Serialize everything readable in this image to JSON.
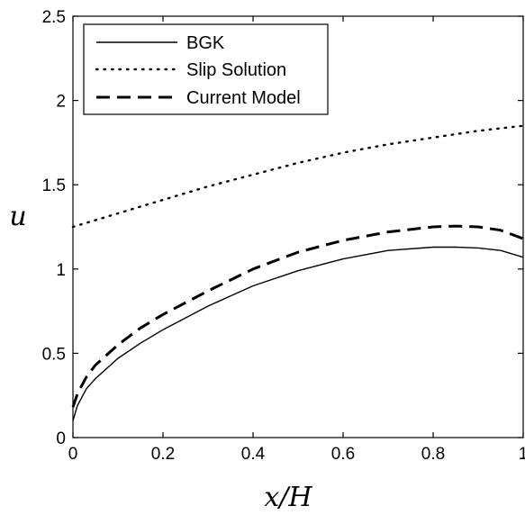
{
  "chart_data": {
    "type": "line",
    "xlabel": "x/H",
    "ylabel": "u",
    "xlim": [
      0,
      1
    ],
    "ylim": [
      0,
      2.5
    ],
    "x_ticks": [
      0,
      0.2,
      0.4,
      0.6,
      0.8,
      1
    ],
    "x_tick_labels": [
      "0",
      "0.2",
      "0.4",
      "0.6",
      "0.8",
      "1"
    ],
    "y_ticks": [
      0,
      0.5,
      1,
      1.5,
      2,
      2.5
    ],
    "y_tick_labels": [
      "0",
      "0.5",
      "1",
      "1.5",
      "2",
      "2.5"
    ],
    "grid": false,
    "legend_position": "top-left",
    "series": [
      {
        "name": "BGK",
        "style": "solid",
        "x": [
          0,
          0.01,
          0.03,
          0.05,
          0.1,
          0.15,
          0.2,
          0.3,
          0.4,
          0.5,
          0.6,
          0.7,
          0.8,
          0.85,
          0.9,
          0.95,
          1.0
        ],
        "y": [
          0.1,
          0.19,
          0.29,
          0.35,
          0.47,
          0.56,
          0.64,
          0.78,
          0.9,
          0.99,
          1.06,
          1.11,
          1.13,
          1.13,
          1.125,
          1.11,
          1.07
        ]
      },
      {
        "name": "Slip Solution",
        "style": "dotted",
        "x": [
          0,
          0.1,
          0.2,
          0.3,
          0.4,
          0.5,
          0.6,
          0.7,
          0.8,
          0.9,
          1.0
        ],
        "y": [
          1.25,
          1.33,
          1.41,
          1.49,
          1.56,
          1.63,
          1.69,
          1.74,
          1.78,
          1.82,
          1.85
        ]
      },
      {
        "name": "Current Model",
        "style": "dashed",
        "x": [
          0,
          0.01,
          0.03,
          0.05,
          0.1,
          0.15,
          0.2,
          0.3,
          0.4,
          0.5,
          0.6,
          0.7,
          0.8,
          0.85,
          0.9,
          0.95,
          1.0
        ],
        "y": [
          0.18,
          0.26,
          0.36,
          0.43,
          0.55,
          0.65,
          0.73,
          0.87,
          1.0,
          1.1,
          1.17,
          1.22,
          1.25,
          1.255,
          1.25,
          1.23,
          1.18
        ]
      }
    ]
  }
}
